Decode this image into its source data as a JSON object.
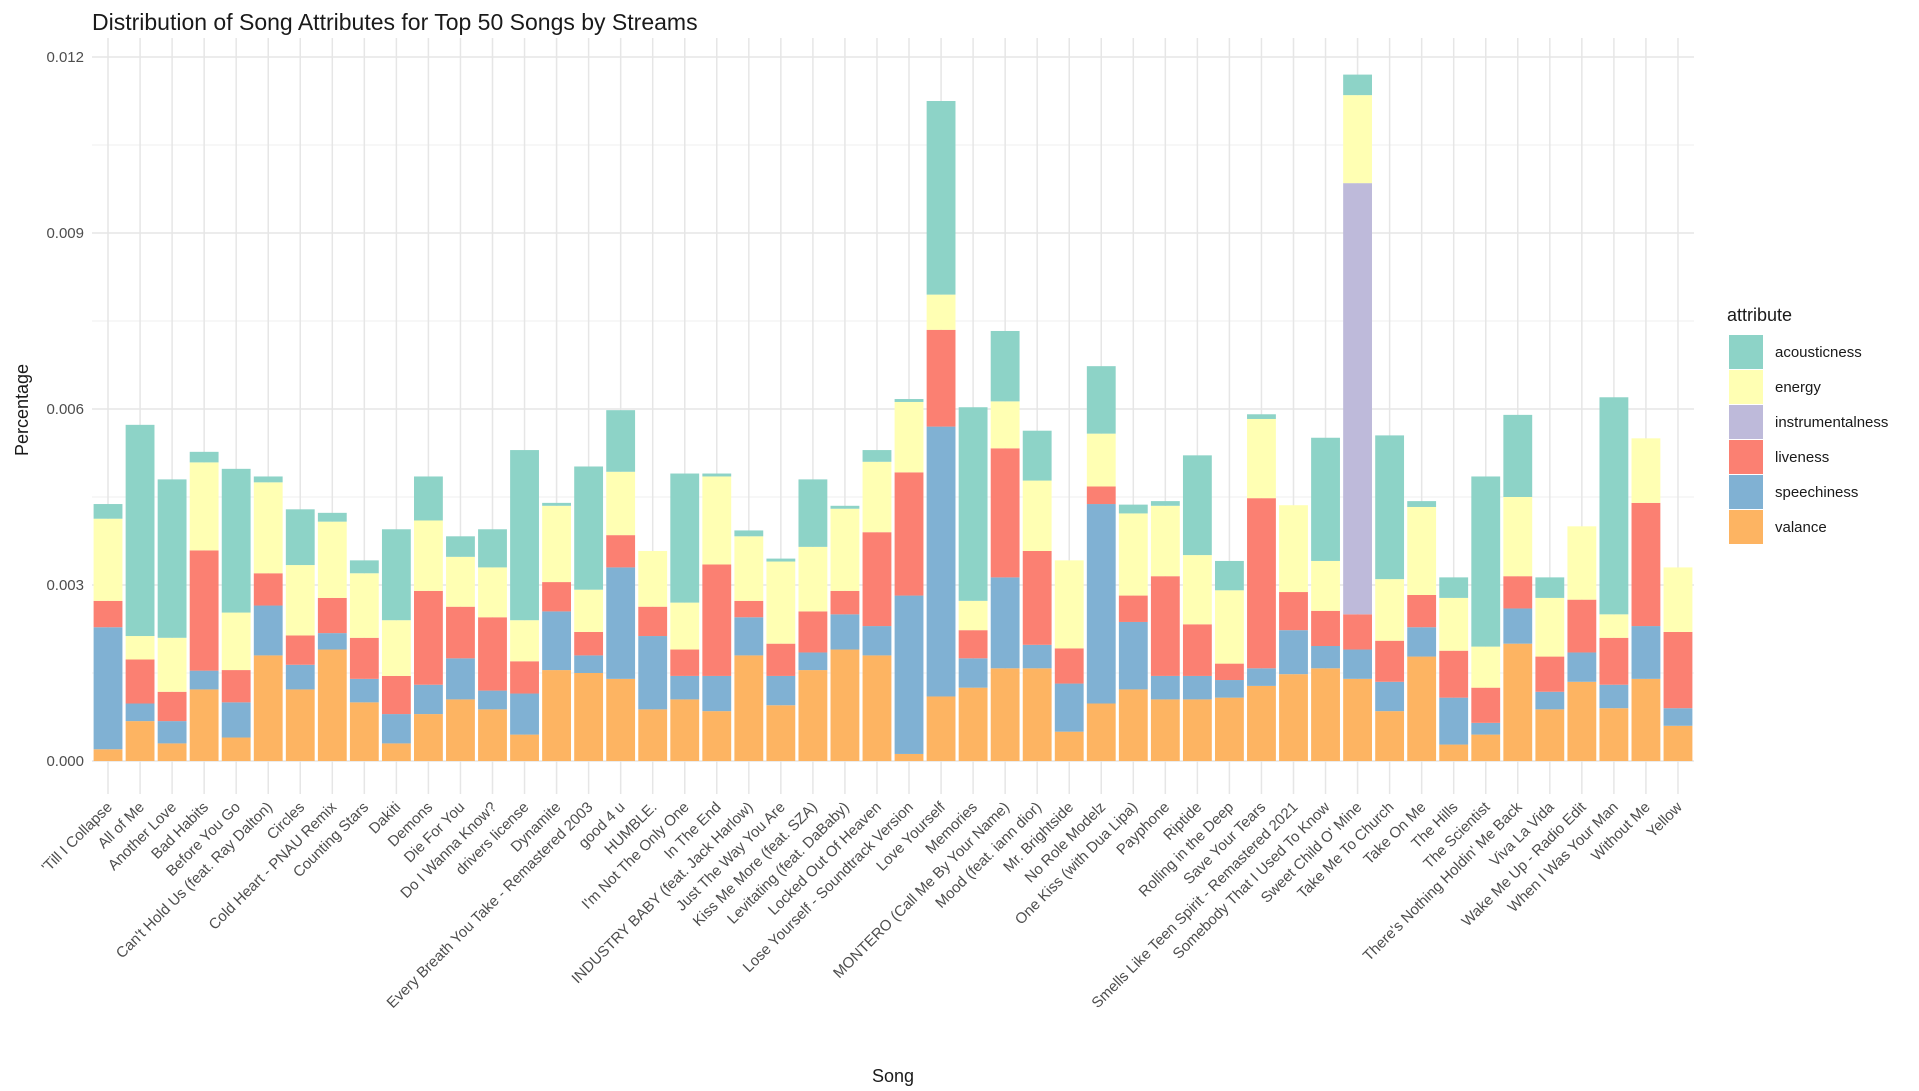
{
  "chart_data": {
    "type": "bar",
    "stacked": true,
    "title": "Distribution of Song Attributes for Top 50 Songs by Streams",
    "xlabel": "Song",
    "ylabel": "Percentage",
    "ylim": [
      -0.00065,
      0.0121
    ],
    "yticks": [
      0,
      0.003,
      0.006,
      0.009,
      0.012
    ],
    "ytick_labels": [
      "0.000",
      "0.003",
      "0.006",
      "0.009",
      "0.012"
    ],
    "grid": true,
    "legend": {
      "title": "attribute",
      "position": "right"
    },
    "categories": [
      "'Till I Collapse",
      "All of Me",
      "Another Love",
      "Bad Habits",
      "Before You Go",
      "Can't Hold Us (feat. Ray Dalton)",
      "Circles",
      "Cold Heart - PNAU Remix",
      "Counting Stars",
      "Dakiti",
      "Demons",
      "Die For You",
      "Do I Wanna Know?",
      "drivers license",
      "Dynamite",
      "Every Breath You Take - Remastered 2003",
      "good 4 u",
      "HUMBLE.",
      "I'm Not The Only One",
      "In The End",
      "INDUSTRY BABY (feat. Jack Harlow)",
      "Just The Way You Are",
      "Kiss Me More (feat. SZA)",
      "Levitating (feat. DaBaby)",
      "Locked Out Of Heaven",
      "Lose Yourself - Soundtrack Version",
      "Love Yourself",
      "Memories",
      "MONTERO (Call Me By Your Name)",
      "Mood (feat. iann dior)",
      "Mr. Brightside",
      "No Role Modelz",
      "One Kiss (with Dua Lipa)",
      "Payphone",
      "Riptide",
      "Rolling in the Deep",
      "Save Your Tears",
      "Smells Like Teen Spirit - Remastered 2021",
      "Somebody That I Used To Know",
      "Sweet Child O' Mine",
      "Take Me To Church",
      "Take On Me",
      "The Hills",
      "The Scientist",
      "There's Nothing Holdin' Me Back",
      "Viva La Vida",
      "Wake Me Up - Radio Edit",
      "When I Was Your Man",
      "Without Me",
      "Yellow"
    ],
    "series": [
      {
        "name": "valance",
        "color": "#FDB462",
        "values": [
          0.0002,
          0.00068,
          0.0003,
          0.00122,
          0.0004,
          0.0018,
          0.00122,
          0.0019,
          0.001,
          0.0003,
          0.0008,
          0.00105,
          0.00088,
          0.00045,
          0.00155,
          0.0015,
          0.0014,
          0.00088,
          0.00105,
          0.00085,
          0.0018,
          0.00095,
          0.00155,
          0.0019,
          0.0018,
          0.00012,
          0.0011,
          0.00125,
          0.00158,
          0.00158,
          0.0005,
          0.00098,
          0.00122,
          0.00105,
          0.00105,
          0.00108,
          0.00128,
          0.00148,
          0.00158,
          0.0014,
          0.00085,
          0.00178,
          0.00028,
          0.00045,
          0.002,
          0.00088,
          0.00135,
          0.0009,
          0.0014,
          0.0006
        ]
      },
      {
        "name": "speechiness",
        "color": "#80B1D3",
        "values": [
          0.00208,
          0.0003,
          0.00038,
          0.00032,
          0.0006,
          0.00085,
          0.00042,
          0.00028,
          0.0004,
          0.0005,
          0.0005,
          0.0007,
          0.00032,
          0.0007,
          0.001,
          0.0003,
          0.0019,
          0.00125,
          0.0004,
          0.0006,
          0.00065,
          0.0005,
          0.0003,
          0.0006,
          0.0005,
          0.0027,
          0.0046,
          0.0005,
          0.00155,
          0.0004,
          0.00082,
          0.0034,
          0.00115,
          0.0004,
          0.0004,
          0.0003,
          0.0003,
          0.00075,
          0.00038,
          0.0005,
          0.0005,
          0.0005,
          0.0008,
          0.0002,
          0.0006,
          0.0003,
          0.0005,
          0.0004,
          0.0009,
          0.0003
        ]
      },
      {
        "name": "liveness",
        "color": "#FB8072",
        "values": [
          0.00045,
          0.00075,
          0.0005,
          0.00205,
          0.00055,
          0.00055,
          0.0005,
          0.0006,
          0.0007,
          0.00065,
          0.0016,
          0.00088,
          0.00125,
          0.00055,
          0.0005,
          0.0004,
          0.00055,
          0.0005,
          0.00045,
          0.0019,
          0.00028,
          0.00055,
          0.0007,
          0.0004,
          0.0016,
          0.0021,
          0.00165,
          0.00048,
          0.0022,
          0.0016,
          0.0006,
          0.0003,
          0.00045,
          0.0017,
          0.00088,
          0.00028,
          0.0029,
          0.00065,
          0.0006,
          0.0006,
          0.0007,
          0.00055,
          0.0008,
          0.0006,
          0.00055,
          0.0006,
          0.0009,
          0.0008,
          0.0021,
          0.0013
        ]
      },
      {
        "name": "instrumentalness",
        "color": "#BEBADA",
        "values": [
          0,
          0,
          0,
          0,
          0,
          0,
          0,
          0,
          0,
          0,
          0,
          0,
          0,
          0,
          0,
          0,
          0,
          0,
          0,
          0,
          0,
          0,
          0,
          0,
          0,
          0,
          0,
          0,
          0,
          0,
          0,
          0,
          0,
          0,
          0,
          0,
          0,
          0,
          0,
          0.00735,
          0,
          0,
          0,
          0,
          0,
          0,
          0,
          0,
          0,
          0
        ]
      },
      {
        "name": "energy",
        "color": "#FFFFB3",
        "values": [
          0.0014,
          0.0004,
          0.00092,
          0.0015,
          0.00098,
          0.00155,
          0.0012,
          0.0013,
          0.0011,
          0.00095,
          0.0012,
          0.00085,
          0.00085,
          0.0007,
          0.0013,
          0.00072,
          0.00108,
          0.00095,
          0.0008,
          0.0015,
          0.0011,
          0.0014,
          0.0011,
          0.0014,
          0.0012,
          0.0012,
          0.0006,
          0.0005,
          0.0008,
          0.0012,
          0.0015,
          0.0009,
          0.0014,
          0.0012,
          0.00118,
          0.00125,
          0.00135,
          0.00148,
          0.00085,
          0.0015,
          0.00105,
          0.0015,
          0.0009,
          0.0007,
          0.00135,
          0.001,
          0.00125,
          0.0004,
          0.0011,
          0.0011
        ]
      },
      {
        "name": "acousticness",
        "color": "#8DD3C7",
        "values": [
          0.00025,
          0.0036,
          0.0027,
          0.00018,
          0.00245,
          0.0001,
          0.00095,
          0.00015,
          0.00022,
          0.00155,
          0.00075,
          0.00035,
          0.00065,
          0.0029,
          5e-05,
          0.0021,
          0.00105,
          0,
          0.0022,
          5e-05,
          0.0001,
          5e-05,
          0.00115,
          5e-05,
          0.0002,
          5e-05,
          0.0033,
          0.0033,
          0.0012,
          0.00085,
          0,
          0.00115,
          0.00015,
          8e-05,
          0.0017,
          0.0005,
          8e-05,
          0,
          0.0021,
          0.00035,
          0.00245,
          0.0001,
          0.00035,
          0.0029,
          0.0014,
          0.00035,
          0,
          0.0037,
          0,
          0
        ]
      }
    ]
  }
}
